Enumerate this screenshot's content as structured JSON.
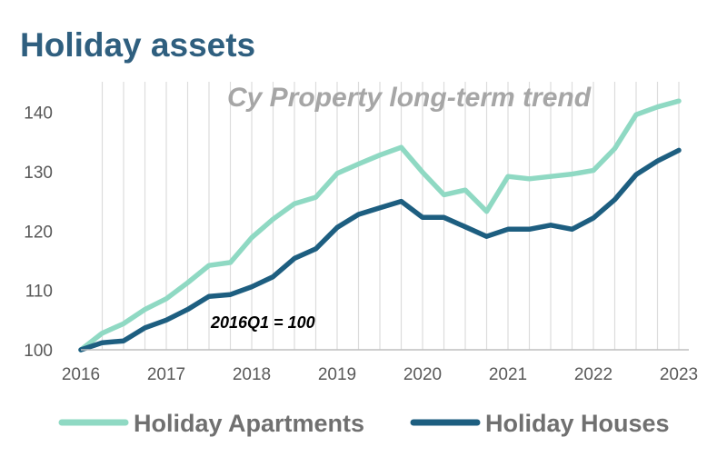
{
  "chart_data": {
    "type": "line",
    "title": "Holiday assets",
    "subtitle": "Cy Property long-term trend",
    "annotation": "2016Q1 = 100",
    "x_ticks": [
      "2016",
      "2017",
      "2018",
      "2019",
      "2020",
      "2021",
      "2022",
      "2023"
    ],
    "y_ticks": [
      "100",
      "110",
      "120",
      "130",
      "140"
    ],
    "ylim": [
      100,
      143
    ],
    "x": [
      "2016Q1",
      "2016Q2",
      "2016Q3",
      "2016Q4",
      "2017Q1",
      "2017Q2",
      "2017Q3",
      "2017Q4",
      "2018Q1",
      "2018Q2",
      "2018Q3",
      "2018Q4",
      "2019Q1",
      "2019Q2",
      "2019Q3",
      "2019Q4",
      "2020Q1",
      "2020Q2",
      "2020Q3",
      "2020Q4",
      "2021Q1",
      "2021Q2",
      "2021Q3",
      "2021Q4",
      "2022Q1",
      "2022Q2",
      "2022Q3",
      "2022Q4",
      "2023Q1"
    ],
    "grid": "vertical",
    "legend_position": "bottom",
    "series": [
      {
        "name": "Holiday Apartments",
        "color": "#8fd9c3",
        "values": [
          100,
          102.8,
          104.4,
          106.8,
          108.6,
          111.3,
          114.2,
          114.7,
          118.9,
          122.0,
          124.6,
          125.7,
          129.7,
          131.3,
          132.8,
          134.1,
          129.9,
          126.1,
          126.9,
          123.3,
          129.2,
          128.8,
          129.2,
          129.6,
          130.2,
          133.9,
          139.6,
          140.9,
          141.9
        ]
      },
      {
        "name": "Holiday Houses",
        "color": "#1d5e80",
        "values": [
          100,
          101.2,
          101.5,
          103.7,
          105.0,
          106.8,
          109.0,
          109.3,
          110.6,
          112.3,
          115.4,
          117.0,
          120.6,
          122.8,
          123.9,
          125.0,
          122.3,
          122.3,
          120.7,
          119.1,
          120.3,
          120.3,
          121.0,
          120.3,
          122.2,
          125.3,
          129.5,
          131.8,
          133.6
        ]
      }
    ]
  }
}
